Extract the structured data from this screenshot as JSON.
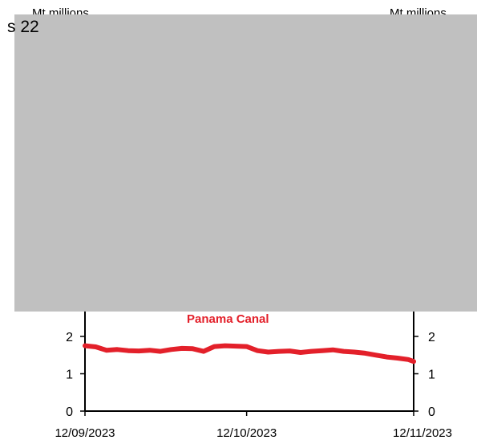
{
  "overlay": {
    "text": "s 22",
    "color": "#c0c0c0"
  },
  "chart_data": {
    "type": "line",
    "left_axis_unit": "Mt millions",
    "right_axis_unit": "Mt millions",
    "y_ticks": [
      "0",
      "1",
      "2"
    ],
    "ylim": [
      0,
      3.4
    ],
    "x_ticks": [
      "12/09/2023",
      "12/10/2023",
      "12/11/2023"
    ],
    "x_tick_values": [
      0,
      30,
      61
    ],
    "xlim": [
      0,
      61
    ],
    "grid": false,
    "series": [
      {
        "name": "Panama Canal",
        "color": "#e3202a",
        "x": [
          0,
          2,
          4,
          6,
          8,
          10,
          12,
          14,
          16,
          18,
          20,
          22,
          24,
          26,
          28,
          30,
          32,
          34,
          36,
          38,
          40,
          42,
          44,
          46,
          48,
          50,
          52,
          54,
          56,
          58,
          60,
          61
        ],
        "y": [
          1.75,
          1.72,
          1.63,
          1.65,
          1.62,
          1.61,
          1.63,
          1.6,
          1.65,
          1.68,
          1.67,
          1.6,
          1.73,
          1.75,
          1.74,
          1.73,
          1.62,
          1.58,
          1.6,
          1.61,
          1.57,
          1.6,
          1.62,
          1.64,
          1.6,
          1.58,
          1.55,
          1.5,
          1.45,
          1.42,
          1.38,
          1.33
        ]
      }
    ]
  }
}
